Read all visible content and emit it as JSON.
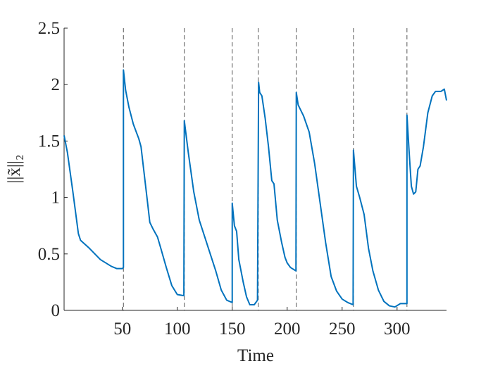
{
  "chart_data": {
    "type": "line",
    "x_label": "Time",
    "y_label": "||x̃||₂",
    "color": "#0072bd",
    "xlim": [
      -3,
      345
    ],
    "ylim": [
      0,
      2.5
    ],
    "xticks": [
      50,
      100,
      150,
      200,
      250,
      300
    ],
    "yticks": [
      0,
      0.5,
      1,
      1.5,
      2,
      2.5
    ],
    "vlines": [
      51,
      106.4,
      150,
      173.7,
      208.3,
      260.3,
      309
    ],
    "x": [
      -3,
      0,
      5,
      10,
      12,
      20,
      25,
      30,
      40,
      45,
      50,
      51,
      51,
      53,
      56,
      60,
      65,
      67,
      70,
      73,
      75,
      78,
      82,
      85,
      90,
      95,
      100,
      106,
      106.4,
      110,
      115,
      120,
      125,
      130,
      135,
      140,
      145,
      150,
      150,
      152,
      154,
      156,
      160,
      163,
      166,
      170,
      173,
      174,
      175,
      177,
      180,
      183,
      186,
      188,
      191,
      195,
      198,
      200,
      203,
      208,
      208.3,
      210,
      215,
      220,
      225,
      230,
      235,
      240,
      245,
      250,
      255,
      260,
      260.3,
      263,
      266,
      270,
      274,
      278,
      283,
      288,
      293,
      298,
      303,
      309,
      309,
      311,
      313,
      315,
      317,
      319,
      321,
      324,
      328,
      332,
      335,
      340,
      343,
      345
    ],
    "values": [
      1.55,
      1.4,
      1.05,
      0.68,
      0.62,
      0.55,
      0.5,
      0.45,
      0.39,
      0.37,
      0.37,
      0.38,
      2.13,
      1.95,
      1.8,
      1.65,
      1.52,
      1.45,
      1.2,
      0.95,
      0.78,
      0.72,
      0.65,
      0.55,
      0.38,
      0.22,
      0.14,
      0.13,
      1.68,
      1.4,
      1.05,
      0.8,
      0.65,
      0.5,
      0.35,
      0.18,
      0.09,
      0.07,
      0.95,
      0.75,
      0.7,
      0.45,
      0.25,
      0.12,
      0.05,
      0.05,
      0.09,
      2.02,
      1.93,
      1.9,
      1.7,
      1.45,
      1.15,
      1.12,
      0.8,
      0.6,
      0.47,
      0.42,
      0.38,
      0.35,
      1.93,
      1.82,
      1.72,
      1.58,
      1.3,
      0.95,
      0.6,
      0.3,
      0.17,
      0.1,
      0.07,
      0.05,
      1.42,
      1.1,
      1.0,
      0.85,
      0.55,
      0.35,
      0.18,
      0.08,
      0.04,
      0.03,
      0.06,
      0.06,
      1.73,
      1.4,
      1.1,
      1.03,
      1.05,
      1.25,
      1.28,
      1.45,
      1.75,
      1.9,
      1.94,
      1.94,
      1.96,
      1.86
    ]
  }
}
